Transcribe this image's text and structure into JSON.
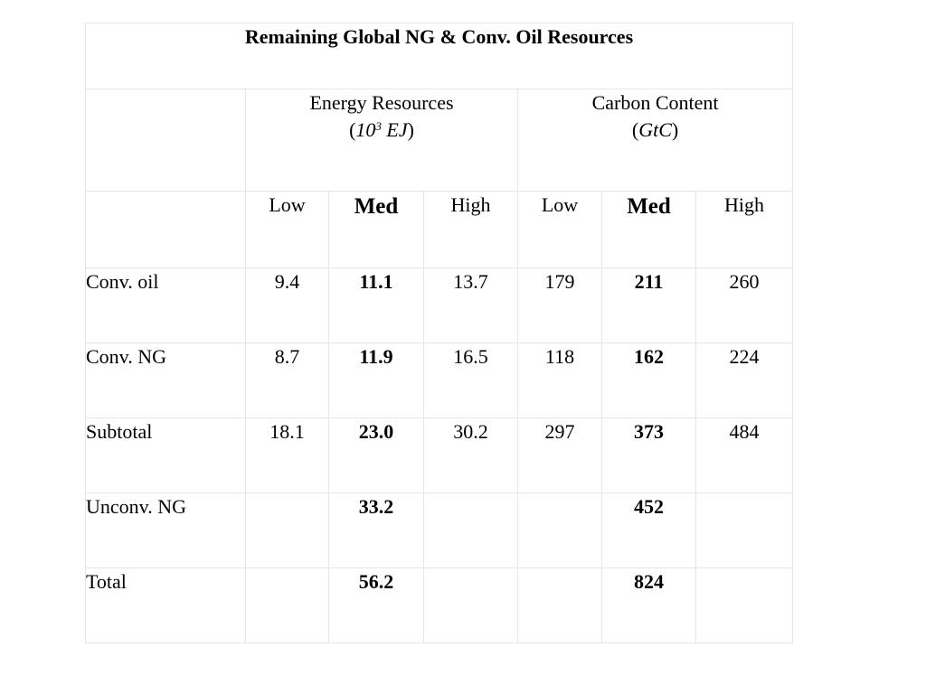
{
  "table": {
    "title": "Remaining Global NG & Conv. Oil Resources",
    "groups": [
      {
        "name": "Energy Resources",
        "unit_open": "(",
        "unit_base": "10",
        "unit_exp": "3",
        "unit_rest": " EJ",
        "unit_close": ")"
      },
      {
        "name": "Carbon Content",
        "unit_open": "(",
        "unit_base": "GtC",
        "unit_exp": "",
        "unit_rest": "",
        "unit_close": ")"
      }
    ],
    "subheaders": [
      "Low",
      "Med",
      "High",
      "Low",
      "Med",
      "High"
    ],
    "rows": [
      {
        "label": "Conv. oil",
        "values": [
          "9.4",
          "11.1",
          "13.7",
          "179",
          "211",
          "260"
        ]
      },
      {
        "label": "Conv. NG",
        "values": [
          "8.7",
          "11.9",
          "16.5",
          "118",
          "162",
          "224"
        ]
      },
      {
        "label": "Subtotal",
        "values": [
          "18.1",
          "23.0",
          "30.2",
          "297",
          "373",
          "484"
        ]
      },
      {
        "label": "Unconv. NG",
        "values": [
          "",
          "33.2",
          "",
          "",
          "452",
          ""
        ]
      },
      {
        "label": "Total",
        "values": [
          "",
          "56.2",
          "",
          "",
          "824",
          ""
        ]
      }
    ]
  }
}
